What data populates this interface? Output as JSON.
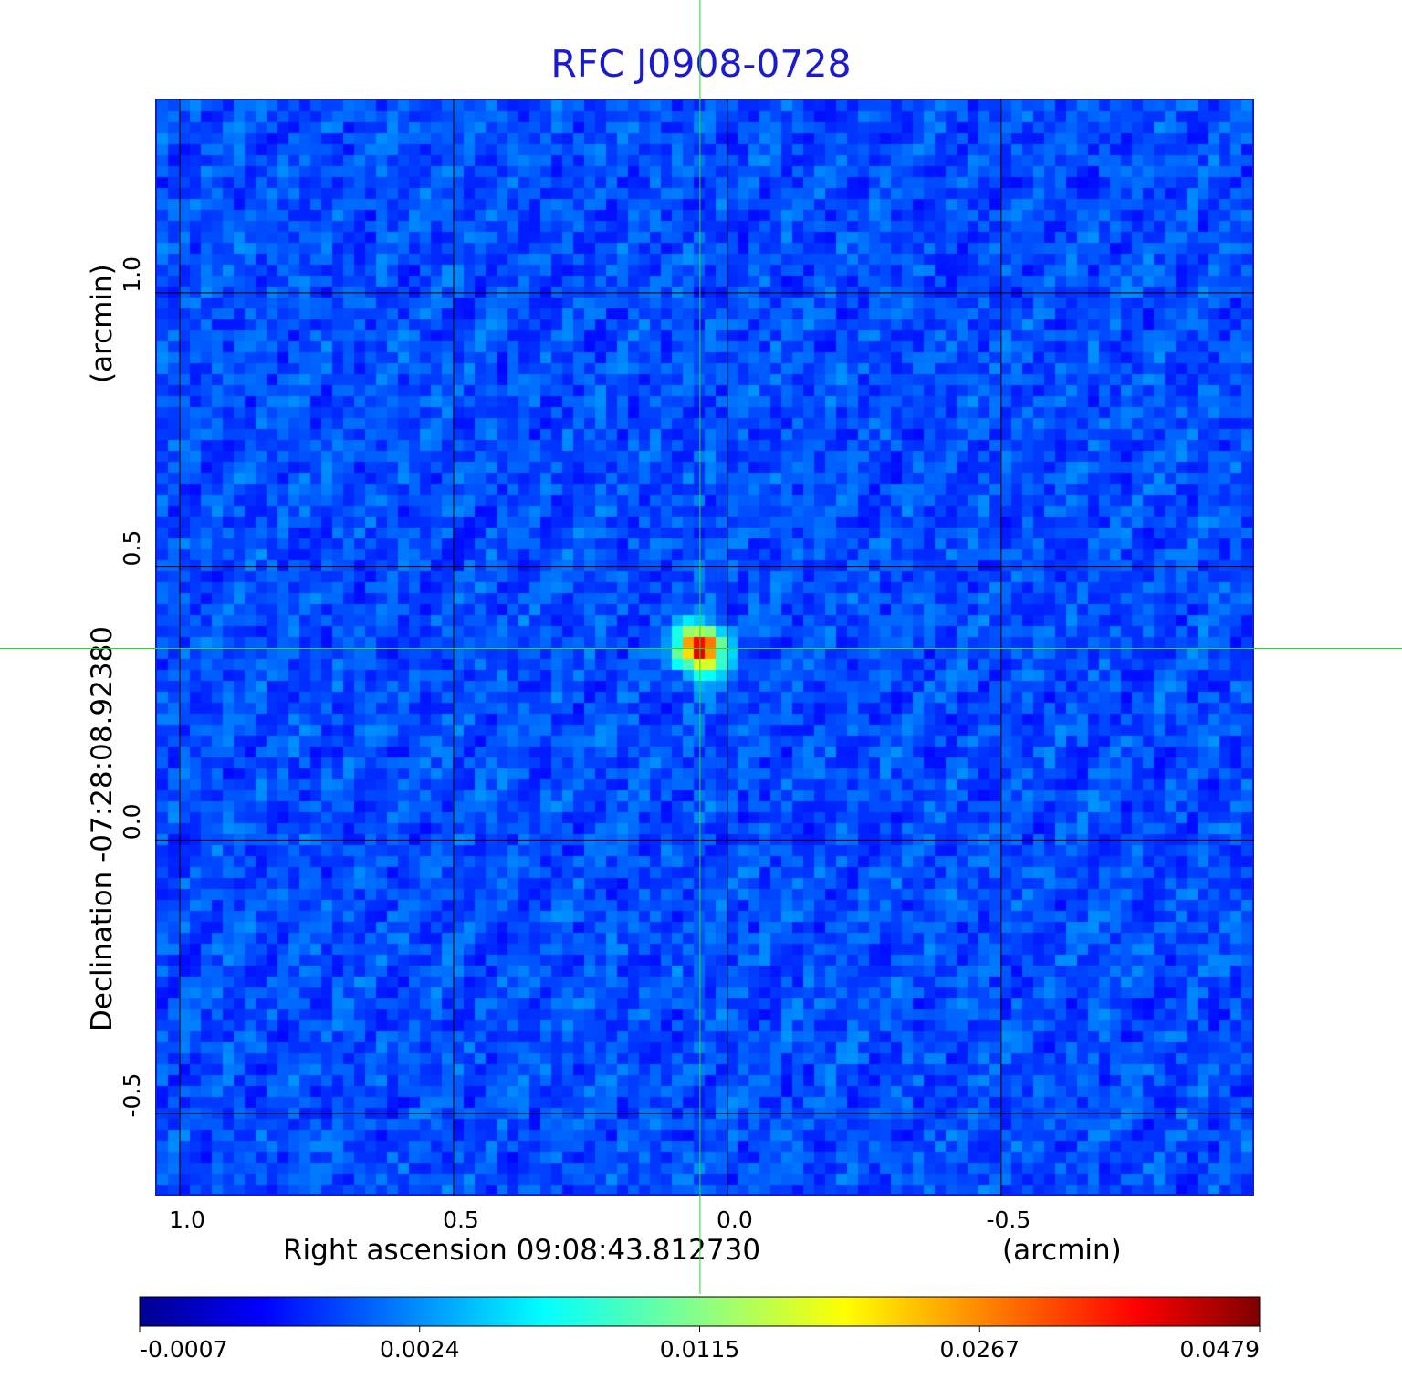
{
  "chart_data": {
    "type": "heatmap",
    "title": "RFC J0908-0728",
    "xlabel": "Right ascension  09:08:43.812730",
    "xlabel_unit": "(arcmin)",
    "ylabel": "Declination  -07:28:08.92380",
    "ylabel_unit": "(arcmin)",
    "x_ticks": [
      1.0,
      0.5,
      0.0,
      -0.5
    ],
    "x_tick_labels": [
      "1.0",
      "0.5",
      "0.0",
      "-0.5"
    ],
    "y_ticks": [
      1.0,
      0.5,
      0.0,
      -0.5
    ],
    "y_tick_labels": [
      "1.0",
      "0.5",
      "0.0",
      "-0.5"
    ],
    "xlim": [
      1.045,
      -0.962
    ],
    "ylim": [
      -0.65,
      1.355
    ],
    "grid": true,
    "crosshair": {
      "x": 0.05,
      "y": 0.35,
      "color": "#2ed62e"
    },
    "source": {
      "x": 0.05,
      "y": 0.35,
      "peak": 0.0479
    },
    "colorbar": {
      "colormap": "jet",
      "ticks": [
        -0.0007,
        0.0024,
        0.0115,
        0.0267,
        0.0479
      ],
      "tick_labels": [
        "-0.0007",
        "0.0024",
        "0.0115",
        "0.0267",
        "0.0479"
      ]
    },
    "colors": {
      "title": "#1a1ad0",
      "background": "#1a3cf0",
      "frame": "#1020d8",
      "grid": "#000000"
    }
  }
}
